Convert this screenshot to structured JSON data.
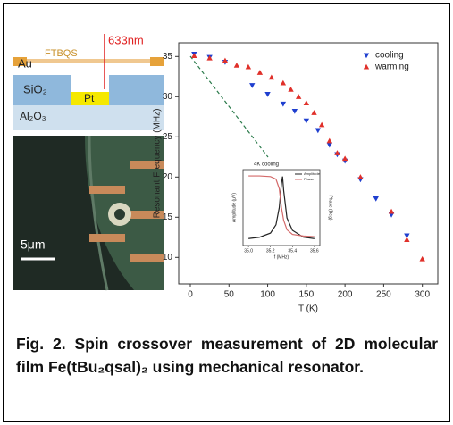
{
  "schematic": {
    "laser": "633nm",
    "gold": "Au",
    "molecule": "FTBQS",
    "oxide": "SiO₂",
    "electrode": "Pt",
    "substrate": "Al₂O₃"
  },
  "micrograph": {
    "scale_bar": "5μm"
  },
  "chart_data": [
    {
      "type": "scatter",
      "xlabel": "T (K)",
      "ylabel": "Resonant Frequency (MHz)",
      "xlim": [
        -15,
        320
      ],
      "xticks": [
        0,
        50,
        100,
        150,
        200,
        250,
        300
      ],
      "ylim": [
        6.7,
        36.7
      ],
      "yticks": [
        10,
        15,
        20,
        25,
        30,
        35
      ],
      "legend": "upper right",
      "series": [
        {
          "name": "cooling",
          "color": "#1f3fcf",
          "marker": "down",
          "x": [
            5,
            25,
            45,
            80,
            100,
            120,
            135,
            150,
            165,
            180,
            190,
            200,
            220,
            240,
            260,
            280
          ],
          "values": [
            35.3,
            34.9,
            34.3,
            31.4,
            30.3,
            29.1,
            28.2,
            27.0,
            25.8,
            24.0,
            22.8,
            22.0,
            19.7,
            17.3,
            15.3,
            12.7
          ]
        },
        {
          "name": "warming",
          "color": "#e0302a",
          "marker": "up",
          "x": [
            5,
            25,
            45,
            60,
            75,
            90,
            105,
            120,
            130,
            140,
            150,
            160,
            170,
            180,
            190,
            200,
            220,
            260,
            280,
            300
          ],
          "values": [
            35.1,
            34.8,
            34.5,
            33.9,
            33.7,
            33.0,
            32.4,
            31.7,
            30.9,
            30.0,
            29.2,
            28.0,
            26.5,
            24.5,
            23.0,
            22.3,
            20.0,
            15.7,
            12.2,
            9.8
          ]
        }
      ]
    },
    {
      "type": "line",
      "title": "4K cooling",
      "xlabel": "f (MHz)",
      "ylabel": "Amplitude (μV)",
      "y2label": "Phase (Deg)",
      "xlim": [
        34.95,
        35.65
      ],
      "xticks": [
        {
          "value": 35.0,
          "label": "35.0"
        },
        {
          "value": 35.2,
          "label": "35.2"
        },
        {
          "value": 35.4,
          "label": "35.4"
        },
        {
          "value": 35.6,
          "label": "35.6"
        }
      ],
      "ylim": [
        0,
        1.1
      ],
      "y2lim": [
        -200,
        40
      ],
      "series": [
        {
          "name": "Amplitude",
          "color": "#222222",
          "x": [
            35.0,
            35.1,
            35.2,
            35.25,
            35.28,
            35.3,
            35.31,
            35.32,
            35.35,
            35.4,
            35.5,
            35.6
          ],
          "values": [
            0.1,
            0.12,
            0.18,
            0.3,
            0.55,
            0.9,
            1.0,
            0.8,
            0.4,
            0.22,
            0.12,
            0.1
          ]
        },
        {
          "name": "Phase",
          "color": "#d46a6a",
          "axis": "y2",
          "x": [
            35.0,
            35.1,
            35.2,
            35.25,
            35.28,
            35.3,
            35.31,
            35.32,
            35.35,
            35.4,
            35.5,
            35.6
          ],
          "values": [
            20,
            20,
            18,
            10,
            -20,
            -80,
            -100,
            -120,
            -150,
            -165,
            -170,
            -172
          ]
        }
      ]
    }
  ],
  "caption": "Fig. 2. Spin crossover measurement of 2D molecular film Fe(tBu₂qsal)₂ using mechanical resonator."
}
